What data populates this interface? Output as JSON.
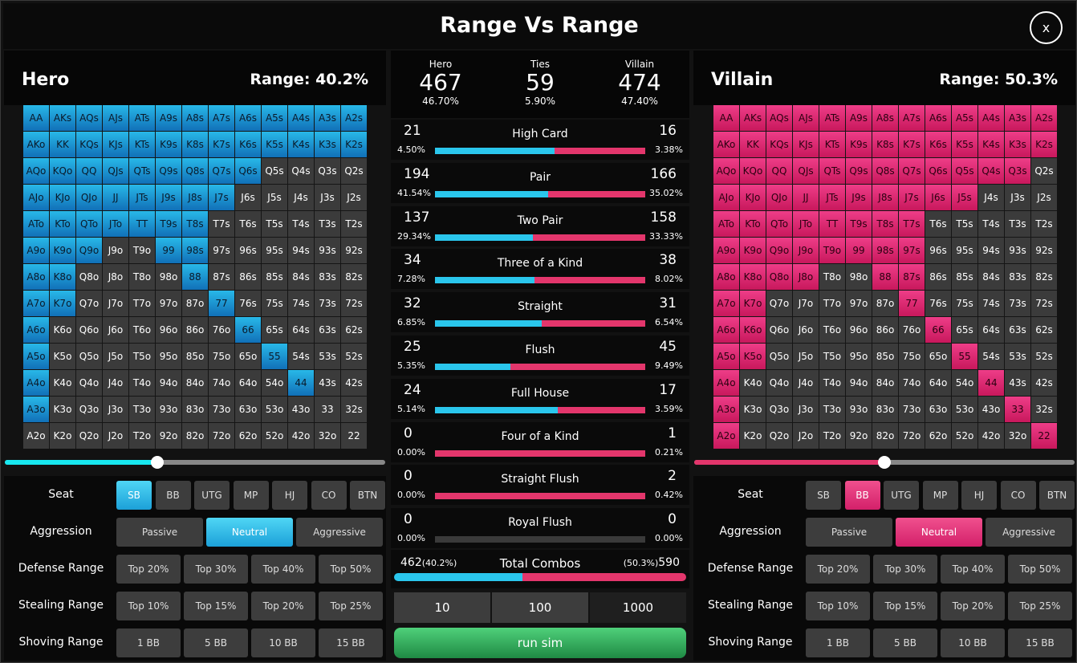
{
  "window": {
    "title": "Range Vs Range",
    "close_label": "x"
  },
  "hero": {
    "name": "Hero",
    "range_label": "Range: 40.2%",
    "slider_value": 0.4,
    "selected": [
      "AA",
      "AKs",
      "AQs",
      "AJs",
      "ATs",
      "A9s",
      "A8s",
      "A7s",
      "A6s",
      "A5s",
      "A4s",
      "A3s",
      "A2s",
      "AKo",
      "KK",
      "KQs",
      "KJs",
      "KTs",
      "K9s",
      "K8s",
      "K7s",
      "K6s",
      "K5s",
      "K4s",
      "K3s",
      "K2s",
      "AQo",
      "KQo",
      "QQ",
      "QJs",
      "QTs",
      "Q9s",
      "Q8s",
      "Q7s",
      "Q6s",
      "AJo",
      "KJo",
      "QJo",
      "JJ",
      "JTs",
      "J9s",
      "J8s",
      "J7s",
      "ATo",
      "KTo",
      "QTo",
      "JTo",
      "TT",
      "T9s",
      "T8s",
      "A9o",
      "K9o",
      "Q9o",
      "99",
      "98s",
      "A8o",
      "K8o",
      "88",
      "A7o",
      "K7o",
      "77",
      "A6o",
      "66",
      "A5o",
      "55",
      "A4o",
      "44",
      "A3o"
    ],
    "seat": {
      "label": "Seat",
      "options": [
        "SB",
        "BB",
        "UTG",
        "MP",
        "HJ",
        "CO",
        "BTN"
      ],
      "selected": "SB"
    },
    "aggression": {
      "label": "Aggression",
      "options": [
        "Passive",
        "Neutral",
        "Aggressive"
      ],
      "selected": "Neutral"
    },
    "defense": {
      "label": "Defense Range",
      "options": [
        "Top 20%",
        "Top 30%",
        "Top 40%",
        "Top 50%"
      ]
    },
    "stealing": {
      "label": "Stealing Range",
      "options": [
        "Top 10%",
        "Top 15%",
        "Top 20%",
        "Top 25%"
      ]
    },
    "shoving": {
      "label": "Shoving Range",
      "options": [
        "1 BB",
        "5 BB",
        "10 BB",
        "15 BB"
      ]
    }
  },
  "villain": {
    "name": "Villain",
    "range_label": "Range: 50.3%",
    "slider_value": 0.5,
    "selected": [
      "AA",
      "AKs",
      "AQs",
      "AJs",
      "ATs",
      "A9s",
      "A8s",
      "A7s",
      "A6s",
      "A5s",
      "A4s",
      "A3s",
      "A2s",
      "AKo",
      "KK",
      "KQs",
      "KJs",
      "KTs",
      "K9s",
      "K8s",
      "K7s",
      "K6s",
      "K5s",
      "K4s",
      "K3s",
      "K2s",
      "AQo",
      "KQo",
      "QQ",
      "QJs",
      "QTs",
      "Q9s",
      "Q8s",
      "Q7s",
      "Q6s",
      "Q5s",
      "Q4s",
      "Q3s",
      "AJo",
      "KJo",
      "QJo",
      "JJ",
      "JTs",
      "J9s",
      "J8s",
      "J7s",
      "J6s",
      "J5s",
      "ATo",
      "KTo",
      "QTo",
      "JTo",
      "TT",
      "T9s",
      "T8s",
      "T7s",
      "A9o",
      "K9o",
      "Q9o",
      "J9o",
      "T9o",
      "99",
      "98s",
      "97s",
      "A8o",
      "K8o",
      "Q8o",
      "J8o",
      "88",
      "87s",
      "A7o",
      "K7o",
      "77",
      "A6o",
      "K6o",
      "66",
      "A5o",
      "K5o",
      "55",
      "A4o",
      "44",
      "A3o",
      "33",
      "A2o",
      "22"
    ],
    "seat": {
      "label": "Seat",
      "options": [
        "SB",
        "BB",
        "UTG",
        "MP",
        "HJ",
        "CO",
        "BTN"
      ],
      "selected": "BB"
    },
    "aggression": {
      "label": "Aggression",
      "options": [
        "Passive",
        "Neutral",
        "Aggressive"
      ],
      "selected": "Neutral"
    },
    "defense": {
      "label": "Defense Range",
      "options": [
        "Top 20%",
        "Top 30%",
        "Top 40%",
        "Top 50%"
      ]
    },
    "stealing": {
      "label": "Stealing Range",
      "options": [
        "Top 10%",
        "Top 15%",
        "Top 20%",
        "Top 25%"
      ]
    },
    "shoving": {
      "label": "Shoving Range",
      "options": [
        "1 BB",
        "5 BB",
        "10 BB",
        "15 BB"
      ]
    }
  },
  "summary": {
    "hero": {
      "label": "Hero",
      "count": "467",
      "pct": "46.70%"
    },
    "ties": {
      "label": "Ties",
      "count": "59",
      "pct": "5.90%"
    },
    "villain": {
      "label": "Villain",
      "count": "474",
      "pct": "47.40%"
    }
  },
  "hands": [
    {
      "name": "High Card",
      "hero": "21",
      "hero_pct": "4.50%",
      "villain": "16",
      "villain_pct": "3.38%"
    },
    {
      "name": "Pair",
      "hero": "194",
      "hero_pct": "41.54%",
      "villain": "166",
      "villain_pct": "35.02%"
    },
    {
      "name": "Two Pair",
      "hero": "137",
      "hero_pct": "29.34%",
      "villain": "158",
      "villain_pct": "33.33%"
    },
    {
      "name": "Three of a Kind",
      "hero": "34",
      "hero_pct": "7.28%",
      "villain": "38",
      "villain_pct": "8.02%"
    },
    {
      "name": "Straight",
      "hero": "32",
      "hero_pct": "6.85%",
      "villain": "31",
      "villain_pct": "6.54%"
    },
    {
      "name": "Flush",
      "hero": "25",
      "hero_pct": "5.35%",
      "villain": "45",
      "villain_pct": "9.49%"
    },
    {
      "name": "Full House",
      "hero": "24",
      "hero_pct": "5.14%",
      "villain": "17",
      "villain_pct": "3.59%"
    },
    {
      "name": "Four of a Kind",
      "hero": "0",
      "hero_pct": "0.00%",
      "villain": "1",
      "villain_pct": "0.21%"
    },
    {
      "name": "Straight Flush",
      "hero": "0",
      "hero_pct": "0.00%",
      "villain": "2",
      "villain_pct": "0.42%"
    },
    {
      "name": "Royal Flush",
      "hero": "0",
      "hero_pct": "0.00%",
      "villain": "0",
      "villain_pct": "0.00%"
    }
  ],
  "total": {
    "name": "Total Combos",
    "hero": "462",
    "hero_pct": "(40.2%)",
    "villain": "590",
    "villain_pct": "(50.3%)"
  },
  "iterations": {
    "options": [
      "10",
      "100",
      "1000"
    ],
    "selected": "1000"
  },
  "run_label": "run sim",
  "colors": {
    "hero": "#2ac6ec",
    "villain": "#e3366c",
    "run": "#2fa85a"
  }
}
